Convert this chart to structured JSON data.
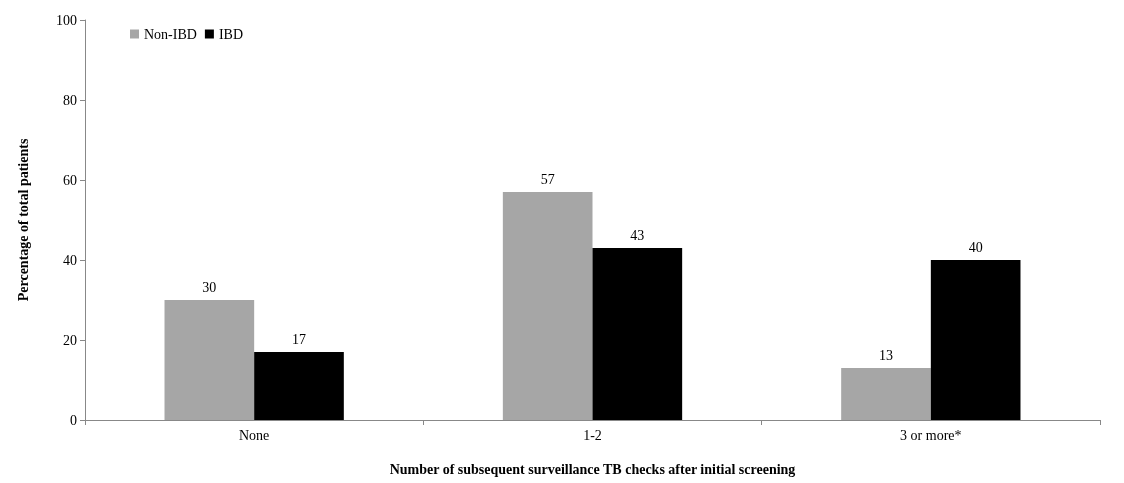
{
  "chart_data": {
    "type": "bar",
    "xlabel": "Number of subsequent surveillance TB checks after initial screening",
    "ylabel": "Percentage of total patients",
    "categories": [
      "None",
      "1-2",
      "3 or more*"
    ],
    "series": [
      {
        "name": "Non-IBD",
        "color": "#a6a6a6",
        "values": [
          30,
          57,
          13
        ]
      },
      {
        "name": "IBD",
        "color": "#000000",
        "values": [
          17,
          43,
          40
        ]
      }
    ],
    "ylim": [
      0,
      100
    ],
    "yticks": [
      0,
      20,
      40,
      60,
      80,
      100
    ],
    "grid": false,
    "legend": "top left",
    "data_labels": true
  }
}
